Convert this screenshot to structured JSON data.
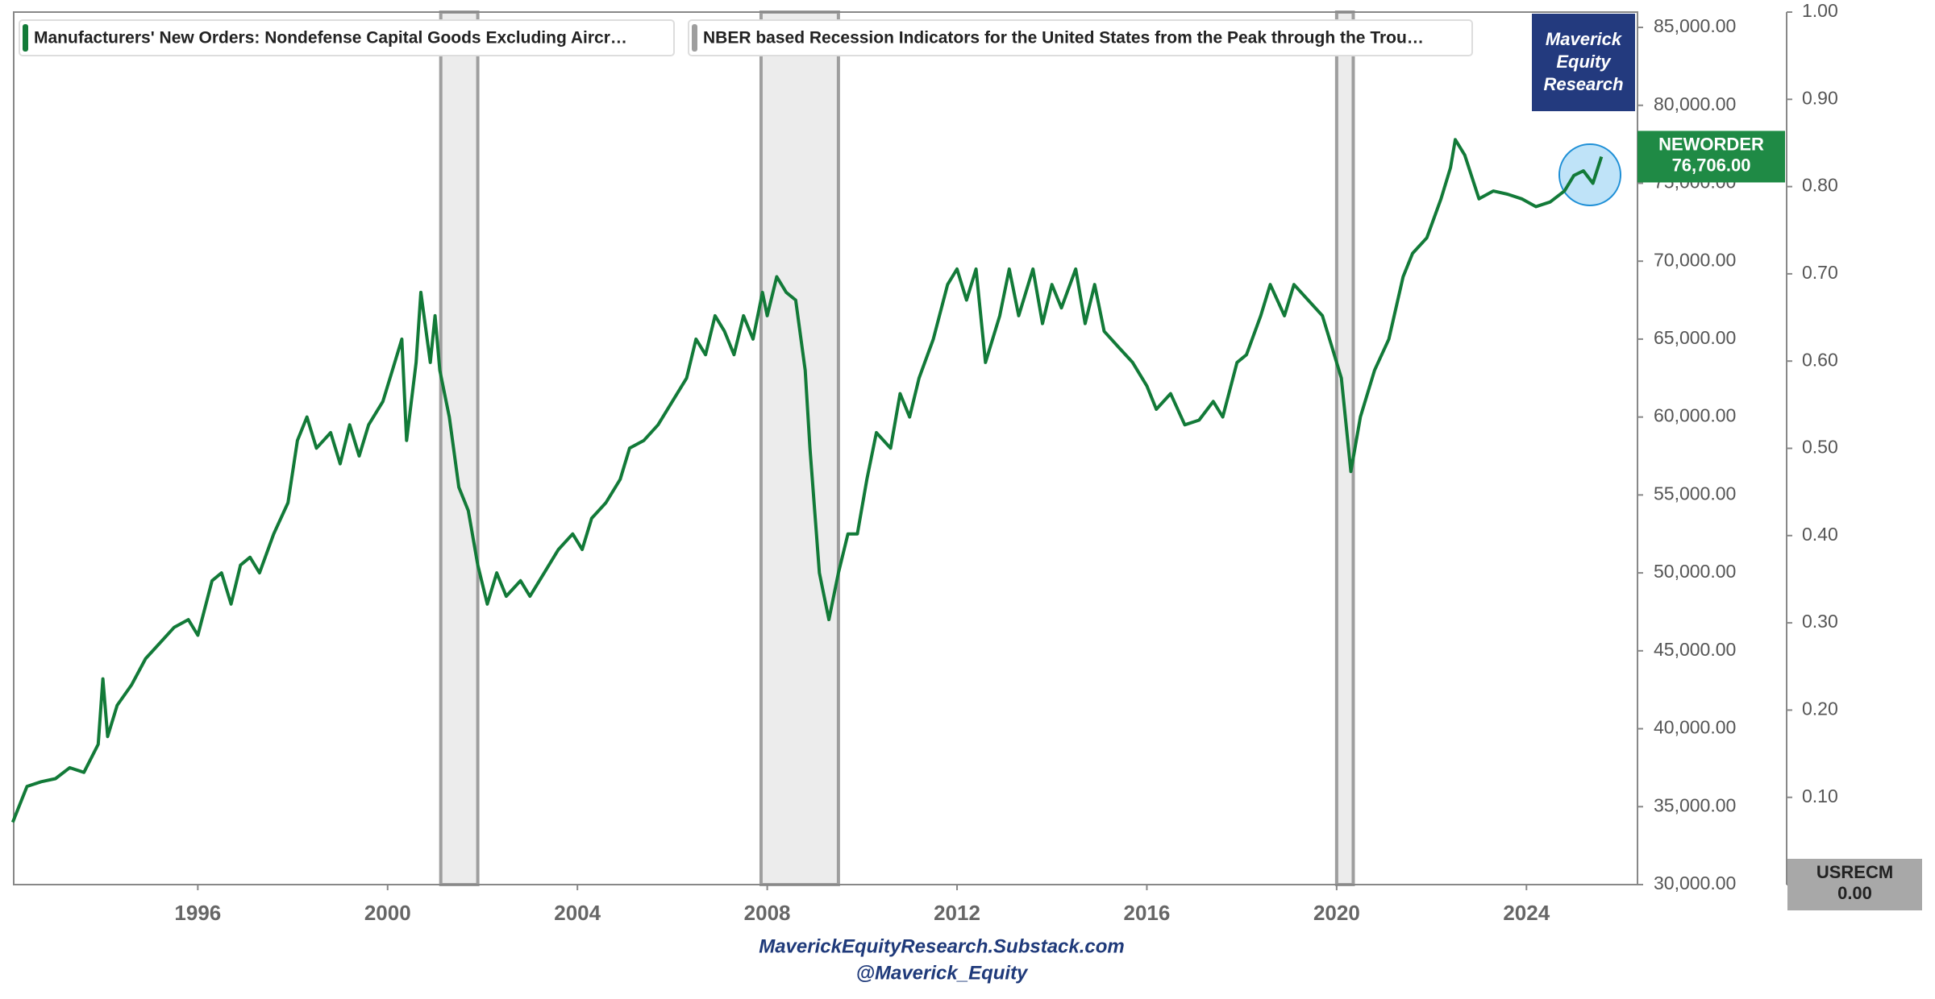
{
  "chart_data": {
    "type": "line",
    "series": [
      {
        "name": "Manufacturers' New Orders: Nondefense Capital Goods Excluding Aircr…",
        "ticker": "NEWORDER",
        "color": "#127a38",
        "x": [
          1992.1,
          1992.4,
          1992.7,
          1993.0,
          1993.3,
          1993.6,
          1993.9,
          1994.0,
          1994.1,
          1994.3,
          1994.6,
          1994.9,
          1995.2,
          1995.5,
          1995.8,
          1996.0,
          1996.3,
          1996.5,
          1996.7,
          1996.9,
          1997.1,
          1997.3,
          1997.6,
          1997.9,
          1998.1,
          1998.3,
          1998.5,
          1998.8,
          1999.0,
          1999.2,
          1999.4,
          1999.6,
          1999.9,
          2000.1,
          2000.3,
          2000.4,
          2000.6,
          2000.7,
          2000.9,
          2001.0,
          2001.1,
          2001.3,
          2001.5,
          2001.7,
          2001.9,
          2002.1,
          2002.3,
          2002.5,
          2002.8,
          2003.0,
          2003.3,
          2003.6,
          2003.9,
          2004.1,
          2004.3,
          2004.6,
          2004.9,
          2005.1,
          2005.4,
          2005.7,
          2006.0,
          2006.3,
          2006.5,
          2006.7,
          2006.9,
          2007.1,
          2007.3,
          2007.5,
          2007.7,
          2007.9,
          2008.0,
          2008.2,
          2008.4,
          2008.6,
          2008.8,
          2008.9,
          2009.1,
          2009.3,
          2009.5,
          2009.7,
          2009.9,
          2010.1,
          2010.3,
          2010.6,
          2010.8,
          2011.0,
          2011.2,
          2011.5,
          2011.8,
          2012.0,
          2012.2,
          2012.4,
          2012.6,
          2012.9,
          2013.1,
          2013.3,
          2013.6,
          2013.8,
          2014.0,
          2014.2,
          2014.5,
          2014.7,
          2014.9,
          2015.1,
          2015.4,
          2015.7,
          2016.0,
          2016.2,
          2016.5,
          2016.8,
          2017.1,
          2017.4,
          2017.6,
          2017.9,
          2018.1,
          2018.4,
          2018.6,
          2018.9,
          2019.1,
          2019.4,
          2019.7,
          2019.9,
          2020.1,
          2020.3,
          2020.5,
          2020.8,
          2021.1,
          2021.4,
          2021.6,
          2021.9,
          2022.2,
          2022.4,
          2022.5,
          2022.7,
          2023.0,
          2023.3,
          2023.6,
          2023.9,
          2024.2,
          2024.5,
          2024.8,
          2025.0,
          2025.2,
          2025.4,
          2025.58
        ],
        "values": [
          34000,
          36300,
          36600,
          36800,
          37500,
          37200,
          39000,
          43200,
          39500,
          41500,
          42800,
          44500,
          45500,
          46500,
          47000,
          46000,
          49500,
          50000,
          48000,
          50500,
          51000,
          50000,
          52500,
          54500,
          58500,
          60000,
          58000,
          59000,
          57000,
          59500,
          57500,
          59500,
          61000,
          63000,
          65000,
          58500,
          63500,
          68000,
          63500,
          66500,
          63000,
          60000,
          55500,
          54000,
          50500,
          48000,
          50000,
          48500,
          49500,
          48500,
          50000,
          51500,
          52500,
          51500,
          53500,
          54500,
          56000,
          58000,
          58500,
          59500,
          61000,
          62500,
          65000,
          64000,
          66500,
          65500,
          64000,
          66500,
          65000,
          68000,
          66500,
          69000,
          68000,
          67500,
          63000,
          58000,
          50000,
          47000,
          50000,
          52500,
          52500,
          56000,
          59000,
          58000,
          61500,
          60000,
          62500,
          65000,
          68500,
          69500,
          67500,
          69500,
          63500,
          66500,
          69500,
          66500,
          69500,
          66000,
          68500,
          67000,
          69500,
          66000,
          68500,
          65500,
          64500,
          63500,
          62000,
          60500,
          61500,
          59500,
          59800,
          61000,
          60000,
          63500,
          64000,
          66500,
          68500,
          66500,
          68500,
          67500,
          66500,
          64500,
          62500,
          56500,
          60000,
          63000,
          65000,
          69000,
          70500,
          71500,
          74000,
          76000,
          77800,
          76800,
          74000,
          74500,
          74300,
          74000,
          73500,
          73800,
          74500,
          75500,
          75800,
          75000,
          76706
        ]
      },
      {
        "name": "NBER based Recession Indicators for the United States from the Peak through the Trou…",
        "ticker": "USRECM",
        "color": "#9e9e9e",
        "axis": "y2",
        "x": [
          1992.12,
          2001.12,
          2001.9,
          2007.87,
          2009.5,
          2020.0,
          2020.35,
          2025.58
        ],
        "values": [
          0,
          1,
          0,
          1,
          0,
          1,
          0,
          0
        ]
      }
    ],
    "end_labels": [
      {
        "ticker": "NEWORDER",
        "value": 76706,
        "label": "76,706.00"
      },
      {
        "ticker": "USRECM",
        "value": 0,
        "label": "0.00"
      }
    ],
    "xlim": [
      1992.12,
      2026.34
    ],
    "xticks": [
      1996,
      2000,
      2004,
      2008,
      2012,
      2016,
      2020,
      2024
    ],
    "ylim": [
      30000,
      85000
    ],
    "yticks": [
      {
        "value": 30000,
        "label": "30,000.00"
      },
      {
        "value": 35000,
        "label": "35,000.00"
      },
      {
        "value": 40000,
        "label": "40,000.00"
      },
      {
        "value": 45000,
        "label": "45,000.00"
      },
      {
        "value": 50000,
        "label": "50,000.00"
      },
      {
        "value": 55000,
        "label": "55,000.00"
      },
      {
        "value": 60000,
        "label": "60,000.00"
      },
      {
        "value": 65000,
        "label": "65,000.00"
      },
      {
        "value": 70000,
        "label": "70,000.00"
      },
      {
        "value": 75000,
        "label": "75,000.00"
      },
      {
        "value": 80000,
        "label": "80,000.00"
      },
      {
        "value": 85000,
        "label": "85,000.00"
      }
    ],
    "y2lim": [
      0,
      1
    ],
    "y2ticks": [
      {
        "value": 0,
        "label": "0.00"
      },
      {
        "value": 0.1,
        "label": "0.10"
      },
      {
        "value": 0.2,
        "label": "0.20"
      },
      {
        "value": 0.3,
        "label": "0.30"
      },
      {
        "value": 0.4,
        "label": "0.40"
      },
      {
        "value": 0.5,
        "label": "0.50"
      },
      {
        "value": 0.6,
        "label": "0.60"
      },
      {
        "value": 0.7,
        "label": "0.70"
      },
      {
        "value": 0.8,
        "label": "0.80"
      },
      {
        "value": 0.9,
        "label": "0.90"
      },
      {
        "value": 1,
        "label": "1.00"
      }
    ],
    "watermark": [
      "Maverick",
      "Equity",
      "Research"
    ],
    "footer": [
      "MaverickEquityResearch.Substack.com",
      "@Maverick_Equity"
    ]
  }
}
